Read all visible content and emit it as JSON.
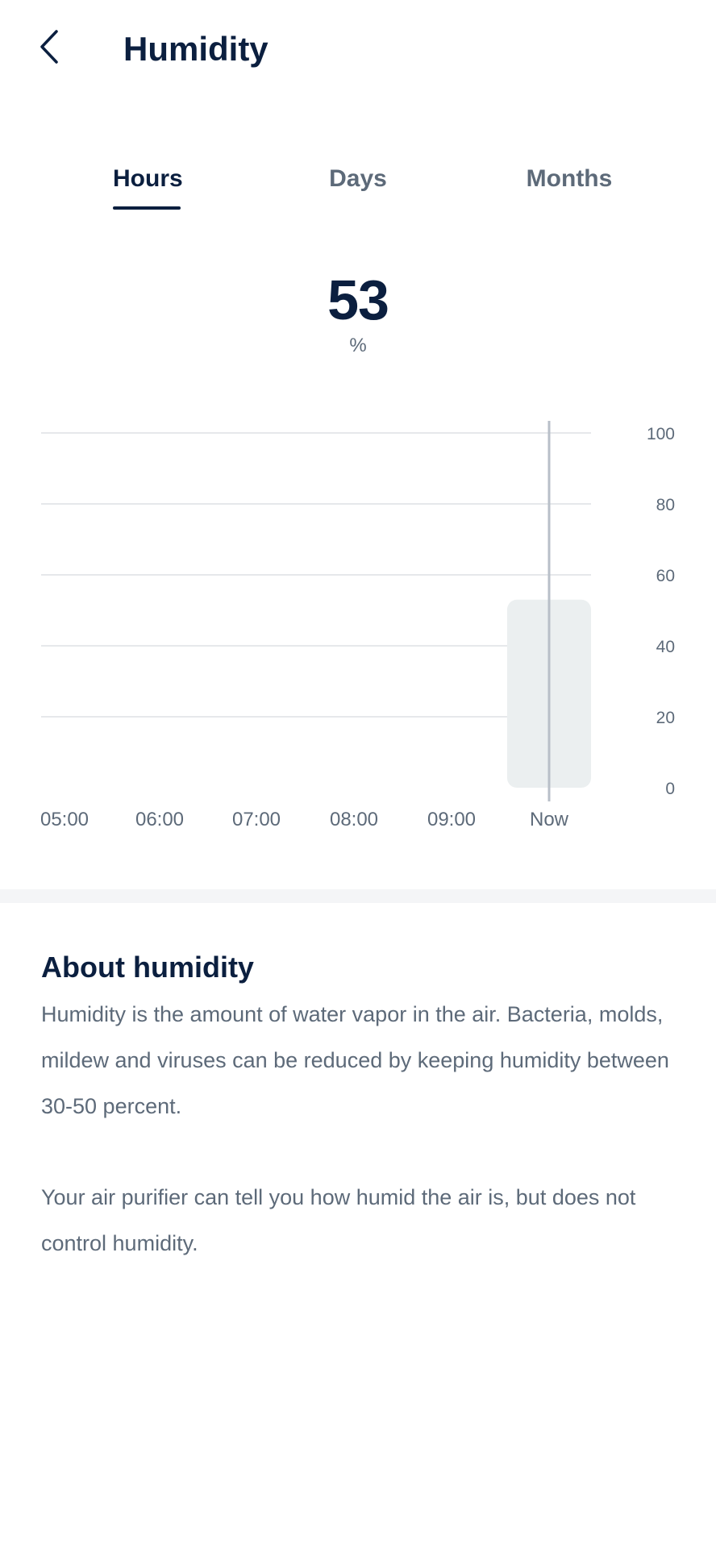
{
  "header": {
    "title": "Humidity",
    "back_icon": "chevron-left-icon"
  },
  "tabs": [
    {
      "label": "Hours",
      "active": true
    },
    {
      "label": "Days",
      "active": false
    },
    {
      "label": "Months",
      "active": false
    }
  ],
  "current": {
    "value": "53",
    "unit": "%"
  },
  "chart_data": {
    "type": "bar",
    "categories": [
      "05:00",
      "06:00",
      "07:00",
      "08:00",
      "09:00",
      "Now"
    ],
    "values": [
      null,
      null,
      null,
      null,
      null,
      53
    ],
    "selected_category": "Now",
    "ylim": [
      0,
      100
    ],
    "yticks": [
      0,
      20,
      40,
      60,
      80,
      100
    ],
    "grid": true,
    "y_axis_side": "right",
    "colors": {
      "bar": "#ebeff0",
      "grid": "#e6e8eb",
      "cursor": "#b8bfc8",
      "tick_text": "#5d6a79"
    }
  },
  "about": {
    "title": "About humidity",
    "paragraph1": "Humidity is the amount of water vapor in the air. Bacteria, molds, mildew and viruses can be reduced by keeping humidity between 30-50 percent.",
    "paragraph2": "Your air purifier can tell you how humid the air is, but does not control humidity."
  },
  "colors": {
    "primary_text": "#0b1f3f",
    "secondary_text": "#5d6a79",
    "divider": "#f4f5f7"
  }
}
